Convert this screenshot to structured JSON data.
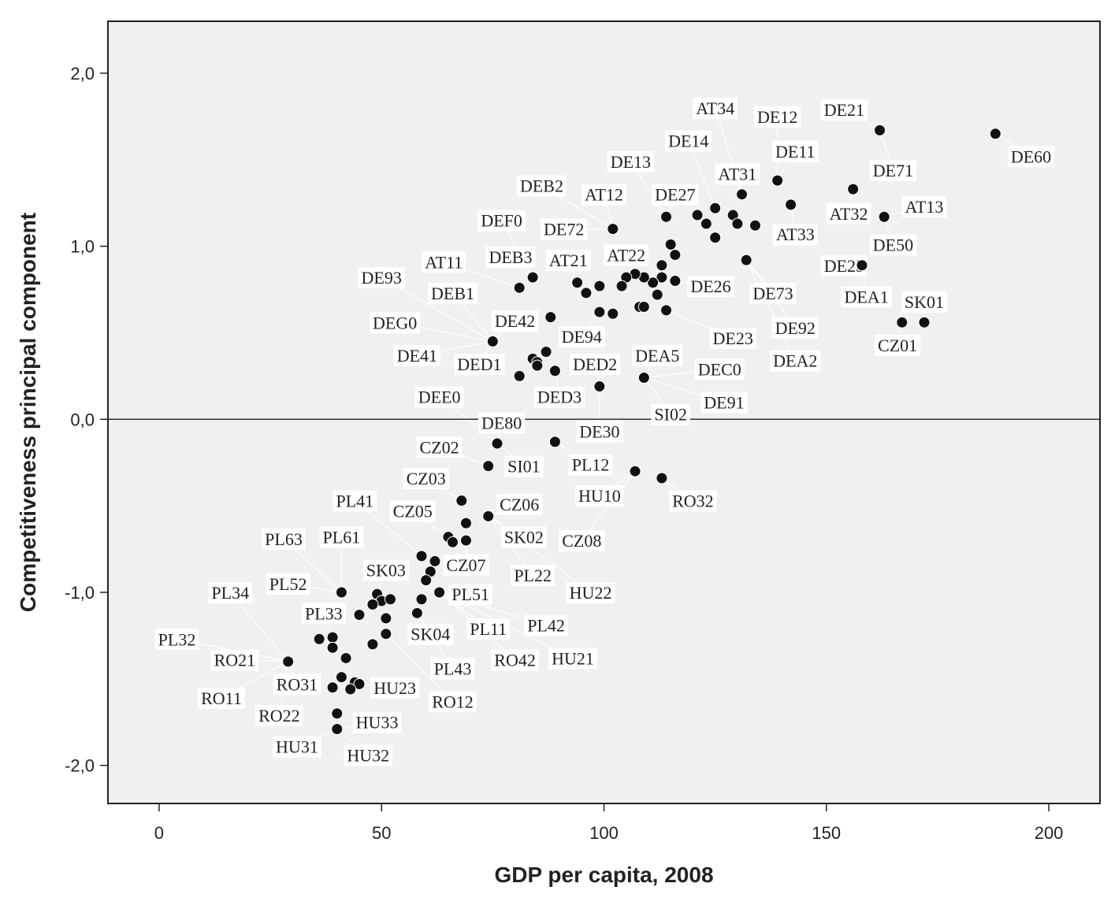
{
  "chart_data": {
    "type": "scatter",
    "title": "",
    "xlabel": "GDP per capita, 2008",
    "ylabel": "Competitiveness principal component",
    "xlim": [
      -11.5,
      211.5
    ],
    "ylim": [
      -2.22,
      2.3
    ],
    "xticks": [
      0,
      50,
      100,
      150,
      200
    ],
    "xtick_labels": [
      "0",
      "50",
      "100",
      "150",
      "200"
    ],
    "yticks": [
      -2.0,
      -1.0,
      0.0,
      1.0,
      2.0
    ],
    "ytick_labels": [
      "-2,0",
      "-1,0",
      "0,0",
      "1,0",
      "2,0"
    ],
    "reference_line_y": 0,
    "grid": false,
    "legend": "none",
    "colors": {
      "plot_bg": "#f0f0f0",
      "marker": "#111111",
      "axis": "#222222",
      "label_bg": "#ffffff"
    },
    "points": [
      {
        "x": 188,
        "y": 1.65
      },
      {
        "x": 162,
        "y": 1.67
      },
      {
        "x": 139,
        "y": 1.38
      },
      {
        "x": 131,
        "y": 1.3
      },
      {
        "x": 142,
        "y": 1.24
      },
      {
        "x": 156,
        "y": 1.33
      },
      {
        "x": 163,
        "y": 1.17
      },
      {
        "x": 125,
        "y": 1.22
      },
      {
        "x": 121,
        "y": 1.18
      },
      {
        "x": 123,
        "y": 1.13
      },
      {
        "x": 129,
        "y": 1.18
      },
      {
        "x": 130,
        "y": 1.13
      },
      {
        "x": 134,
        "y": 1.12
      },
      {
        "x": 125,
        "y": 1.05
      },
      {
        "x": 114,
        "y": 1.17
      },
      {
        "x": 102,
        "y": 1.1
      },
      {
        "x": 115,
        "y": 1.01
      },
      {
        "x": 116,
        "y": 0.95
      },
      {
        "x": 113,
        "y": 0.89
      },
      {
        "x": 113,
        "y": 0.82
      },
      {
        "x": 111,
        "y": 0.79
      },
      {
        "x": 116,
        "y": 0.8
      },
      {
        "x": 109,
        "y": 0.82
      },
      {
        "x": 107,
        "y": 0.84
      },
      {
        "x": 105,
        "y": 0.82
      },
      {
        "x": 104,
        "y": 0.77
      },
      {
        "x": 112,
        "y": 0.72
      },
      {
        "x": 108,
        "y": 0.65
      },
      {
        "x": 109,
        "y": 0.65
      },
      {
        "x": 114,
        "y": 0.63
      },
      {
        "x": 132,
        "y": 0.92
      },
      {
        "x": 158,
        "y": 0.89
      },
      {
        "x": 167,
        "y": 0.56
      },
      {
        "x": 172,
        "y": 0.56
      },
      {
        "x": 84,
        "y": 0.82
      },
      {
        "x": 81,
        "y": 0.76
      },
      {
        "x": 94,
        "y": 0.79
      },
      {
        "x": 96,
        "y": 0.73
      },
      {
        "x": 99,
        "y": 0.77
      },
      {
        "x": 99,
        "y": 0.62
      },
      {
        "x": 102,
        "y": 0.61
      },
      {
        "x": 88,
        "y": 0.59
      },
      {
        "x": 75,
        "y": 0.45
      },
      {
        "x": 84,
        "y": 0.35
      },
      {
        "x": 85,
        "y": 0.33
      },
      {
        "x": 87,
        "y": 0.39
      },
      {
        "x": 85,
        "y": 0.31
      },
      {
        "x": 89,
        "y": 0.28
      },
      {
        "x": 81,
        "y": 0.25
      },
      {
        "x": 99,
        "y": 0.19
      },
      {
        "x": 109,
        "y": 0.24
      },
      {
        "x": 76,
        "y": -0.14
      },
      {
        "x": 89,
        "y": -0.13
      },
      {
        "x": 74,
        "y": -0.27
      },
      {
        "x": 107,
        "y": -0.3
      },
      {
        "x": 113,
        "y": -0.34
      },
      {
        "x": 68,
        "y": -0.47
      },
      {
        "x": 74,
        "y": -0.56
      },
      {
        "x": 69,
        "y": -0.6
      },
      {
        "x": 65,
        "y": -0.68
      },
      {
        "x": 66,
        "y": -0.71
      },
      {
        "x": 69,
        "y": -0.7
      },
      {
        "x": 59,
        "y": -0.79
      },
      {
        "x": 62,
        "y": -0.82
      },
      {
        "x": 61,
        "y": -0.88
      },
      {
        "x": 60,
        "y": -0.93
      },
      {
        "x": 63,
        "y": -1.0
      },
      {
        "x": 59,
        "y": -1.04
      },
      {
        "x": 58,
        "y": -1.12
      },
      {
        "x": 41,
        "y": -1.0
      },
      {
        "x": 49,
        "y": -1.01
      },
      {
        "x": 50,
        "y": -1.05
      },
      {
        "x": 52,
        "y": -1.04
      },
      {
        "x": 48,
        "y": -1.07
      },
      {
        "x": 45,
        "y": -1.13
      },
      {
        "x": 51,
        "y": -1.15
      },
      {
        "x": 51,
        "y": -1.24
      },
      {
        "x": 36,
        "y": -1.27
      },
      {
        "x": 39,
        "y": -1.26
      },
      {
        "x": 39,
        "y": -1.32
      },
      {
        "x": 48,
        "y": -1.3
      },
      {
        "x": 42,
        "y": -1.38
      },
      {
        "x": 29,
        "y": -1.4
      },
      {
        "x": 41,
        "y": -1.49
      },
      {
        "x": 44,
        "y": -1.52
      },
      {
        "x": 45,
        "y": -1.53
      },
      {
        "x": 39,
        "y": -1.55
      },
      {
        "x": 43,
        "y": -1.56
      },
      {
        "x": 40,
        "y": -1.7
      },
      {
        "x": 40,
        "y": -1.79
      }
    ],
    "labels": [
      {
        "text": "AT34",
        "x": 125,
        "y": 1.8
      },
      {
        "text": "DE12",
        "x": 139,
        "y": 1.75
      },
      {
        "text": "DE21",
        "x": 154,
        "y": 1.79
      },
      {
        "text": "DE14",
        "x": 119,
        "y": 1.61
      },
      {
        "text": "DE11",
        "x": 143,
        "y": 1.55
      },
      {
        "text": "DE13",
        "x": 106,
        "y": 1.49
      },
      {
        "text": "DE71",
        "x": 165,
        "y": 1.44
      },
      {
        "text": "DE60",
        "x": 196,
        "y": 1.52
      },
      {
        "text": "AT31",
        "x": 130,
        "y": 1.42
      },
      {
        "text": "DEB2",
        "x": 86,
        "y": 1.35
      },
      {
        "text": "AT12",
        "x": 100,
        "y": 1.3
      },
      {
        "text": "DE27",
        "x": 116,
        "y": 1.3
      },
      {
        "text": "AT13",
        "x": 172,
        "y": 1.23
      },
      {
        "text": "AT32",
        "x": 155,
        "y": 1.19
      },
      {
        "text": "DEF0",
        "x": 77,
        "y": 1.15
      },
      {
        "text": "DE72",
        "x": 91,
        "y": 1.1
      },
      {
        "text": "AT33",
        "x": 143,
        "y": 1.07
      },
      {
        "text": "DE50",
        "x": 165,
        "y": 1.01
      },
      {
        "text": "AT11",
        "x": 64,
        "y": 0.91
      },
      {
        "text": "DEB3",
        "x": 79,
        "y": 0.94
      },
      {
        "text": "AT21",
        "x": 92,
        "y": 0.92
      },
      {
        "text": "AT22",
        "x": 105,
        "y": 0.95
      },
      {
        "text": "DE25",
        "x": 154,
        "y": 0.89
      },
      {
        "text": "DE93",
        "x": 50,
        "y": 0.82
      },
      {
        "text": "DE26",
        "x": 124,
        "y": 0.77
      },
      {
        "text": "DEB1",
        "x": 66,
        "y": 0.73
      },
      {
        "text": "DE73",
        "x": 138,
        "y": 0.73
      },
      {
        "text": "DEA1",
        "x": 159,
        "y": 0.71
      },
      {
        "text": "SK01",
        "x": 172,
        "y": 0.68
      },
      {
        "text": "DEG0",
        "x": 53,
        "y": 0.56
      },
      {
        "text": "DE42",
        "x": 80,
        "y": 0.57
      },
      {
        "text": "DE92",
        "x": 143,
        "y": 0.53
      },
      {
        "text": "DE94",
        "x": 95,
        "y": 0.48
      },
      {
        "text": "DE23",
        "x": 129,
        "y": 0.47
      },
      {
        "text": "CZ01",
        "x": 166,
        "y": 0.43
      },
      {
        "text": "DE41",
        "x": 58,
        "y": 0.37
      },
      {
        "text": "DEA5",
        "x": 112,
        "y": 0.37
      },
      {
        "text": "DEA2",
        "x": 143,
        "y": 0.34
      },
      {
        "text": "DED1",
        "x": 72,
        "y": 0.32
      },
      {
        "text": "DED2",
        "x": 98,
        "y": 0.32
      },
      {
        "text": "DEC0",
        "x": 126,
        "y": 0.29
      },
      {
        "text": "DED3",
        "x": 90,
        "y": 0.13
      },
      {
        "text": "DEE0",
        "x": 63,
        "y": 0.13
      },
      {
        "text": "DE91",
        "x": 127,
        "y": 0.1
      },
      {
        "text": "SI02",
        "x": 115,
        "y": 0.03
      },
      {
        "text": "DE80",
        "x": 77,
        "y": -0.02
      },
      {
        "text": "DE30",
        "x": 99,
        "y": -0.07
      },
      {
        "text": "CZ02",
        "x": 63,
        "y": -0.16
      },
      {
        "text": "SI01",
        "x": 82,
        "y": -0.27
      },
      {
        "text": "PL12",
        "x": 97,
        "y": -0.26
      },
      {
        "text": "CZ03",
        "x": 60,
        "y": -0.34
      },
      {
        "text": "HU10",
        "x": 99,
        "y": -0.44
      },
      {
        "text": "RO32",
        "x": 120,
        "y": -0.47
      },
      {
        "text": "PL41",
        "x": 44,
        "y": -0.47
      },
      {
        "text": "CZ06",
        "x": 81,
        "y": -0.49
      },
      {
        "text": "CZ05",
        "x": 57,
        "y": -0.53
      },
      {
        "text": "SK02",
        "x": 82,
        "y": -0.68
      },
      {
        "text": "CZ08",
        "x": 95,
        "y": -0.7
      },
      {
        "text": "PL63",
        "x": 28,
        "y": -0.69
      },
      {
        "text": "PL61",
        "x": 41,
        "y": -0.68
      },
      {
        "text": "CZ07",
        "x": 69,
        "y": -0.84
      },
      {
        "text": "SK03",
        "x": 51,
        "y": -0.87
      },
      {
        "text": "PL22",
        "x": 84,
        "y": -0.9
      },
      {
        "text": "PL34",
        "x": 16,
        "y": -1.0
      },
      {
        "text": "PL52",
        "x": 29,
        "y": -0.95
      },
      {
        "text": "PL51",
        "x": 70,
        "y": -1.01
      },
      {
        "text": "HU22",
        "x": 97,
        "y": -1.0
      },
      {
        "text": "PL33",
        "x": 37,
        "y": -1.12
      },
      {
        "text": "PL42",
        "x": 87,
        "y": -1.19
      },
      {
        "text": "PL11",
        "x": 74,
        "y": -1.21
      },
      {
        "text": "SK04",
        "x": 61,
        "y": -1.24
      },
      {
        "text": "PL32",
        "x": 4,
        "y": -1.27
      },
      {
        "text": "RO21",
        "x": 17,
        "y": -1.39
      },
      {
        "text": "RO42",
        "x": 80,
        "y": -1.39
      },
      {
        "text": "HU21",
        "x": 93,
        "y": -1.38
      },
      {
        "text": "PL43",
        "x": 66,
        "y": -1.44
      },
      {
        "text": "RO31",
        "x": 31,
        "y": -1.53
      },
      {
        "text": "HU23",
        "x": 53,
        "y": -1.55
      },
      {
        "text": "RO11",
        "x": 14,
        "y": -1.61
      },
      {
        "text": "RO12",
        "x": 66,
        "y": -1.63
      },
      {
        "text": "RO22",
        "x": 27,
        "y": -1.71
      },
      {
        "text": "HU33",
        "x": 49,
        "y": -1.75
      },
      {
        "text": "HU31",
        "x": 31,
        "y": -1.89
      },
      {
        "text": "HU32",
        "x": 47,
        "y": -1.94
      }
    ]
  }
}
